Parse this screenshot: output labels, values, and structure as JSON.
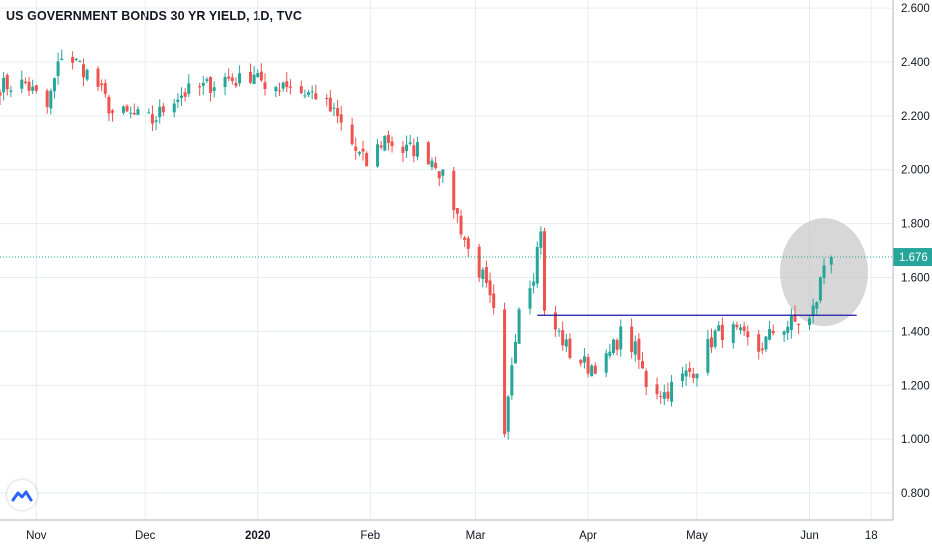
{
  "title": "US GOVERNMENT BONDS 30 YR YIELD, 1D, TVC",
  "colors": {
    "up": "#26a69a",
    "down": "#ef5350",
    "grid": "#e6ecf3",
    "axis": "#b2b5be",
    "last_price_bg": "#26a69a",
    "last_price_line": "#26a69a",
    "support_line": "#1a1aa8",
    "highlight_circle": "#c9c9c9"
  },
  "chart_data": {
    "type": "candlestick",
    "title": "US GOVERNMENT BONDS 30 YR YIELD, 1D, TVC",
    "y_axis": {
      "ticks": [
        "2.600",
        "2.400",
        "2.200",
        "2.000",
        "1.800",
        "1.600",
        "1.400",
        "1.200",
        "1.000",
        "0.800"
      ],
      "range": [
        0.7,
        2.63
      ]
    },
    "x_axis": {
      "ticks": [
        {
          "label": "Nov",
          "date": "2019-11-01",
          "bold": false
        },
        {
          "label": "Dec",
          "date": "2019-12-01",
          "bold": false
        },
        {
          "label": "2020",
          "date": "2020-01-01",
          "bold": true
        },
        {
          "label": "Feb",
          "date": "2020-02-01",
          "bold": false
        },
        {
          "label": "Mar",
          "date": "2020-03-01",
          "bold": false
        },
        {
          "label": "Apr",
          "date": "2020-04-01",
          "bold": false
        },
        {
          "label": "May",
          "date": "2020-05-01",
          "bold": false
        },
        {
          "label": "Jun",
          "date": "2020-06-01",
          "bold": false
        },
        {
          "label": "18",
          "date": "2020-06-18",
          "bold": false
        }
      ],
      "range": [
        "2019-10-22",
        "2020-06-24"
      ]
    },
    "last_price": "1.676",
    "support_level": 1.46,
    "support_line": {
      "from": "2020-03-18",
      "to": "2020-06-14"
    },
    "highlight": {
      "center_date": "2020-06-05",
      "center_value": 1.62
    },
    "keypoints": [
      [
        "2019-10-22",
        2.31
      ],
      [
        "2019-10-29",
        2.32
      ],
      [
        "2019-11-04",
        2.23
      ],
      [
        "2019-11-08",
        2.43
      ],
      [
        "2019-11-13",
        2.39
      ],
      [
        "2019-11-18",
        2.31
      ],
      [
        "2019-11-22",
        2.21
      ],
      [
        "2019-11-28",
        2.2
      ],
      [
        "2019-12-03",
        2.18
      ],
      [
        "2019-12-09",
        2.27
      ],
      [
        "2019-12-13",
        2.29
      ],
      [
        "2019-12-18",
        2.31
      ],
      [
        "2019-12-23",
        2.34
      ],
      [
        "2019-12-27",
        2.33
      ],
      [
        "2020-01-01",
        2.37
      ],
      [
        "2020-01-03",
        2.27
      ],
      [
        "2020-01-08",
        2.33
      ],
      [
        "2020-01-13",
        2.29
      ],
      [
        "2020-01-17",
        2.28
      ],
      [
        "2020-01-23",
        2.19
      ],
      [
        "2020-01-28",
        2.07
      ],
      [
        "2020-01-31",
        2.02
      ],
      [
        "2020-02-05",
        2.12
      ],
      [
        "2020-02-10",
        2.07
      ],
      [
        "2020-02-14",
        2.08
      ],
      [
        "2020-02-19",
        2.03
      ],
      [
        "2020-02-24",
        1.87
      ],
      [
        "2020-02-28",
        1.7
      ],
      [
        "2020-03-03",
        1.6
      ],
      [
        "2020-03-06",
        1.46
      ],
      [
        "2020-03-09",
        0.99
      ],
      [
        "2020-03-11",
        1.29
      ],
      [
        "2020-03-13",
        1.5
      ],
      [
        "2020-03-17",
        1.62
      ],
      [
        "2020-03-19",
        1.79
      ],
      [
        "2020-03-20",
        1.46
      ],
      [
        "2020-03-24",
        1.39
      ],
      [
        "2020-03-27",
        1.32
      ],
      [
        "2020-04-01",
        1.27
      ],
      [
        "2020-04-06",
        1.29
      ],
      [
        "2020-04-10",
        1.39
      ],
      [
        "2020-04-14",
        1.33
      ],
      [
        "2020-04-17",
        1.21
      ],
      [
        "2020-04-22",
        1.17
      ],
      [
        "2020-04-27",
        1.23
      ],
      [
        "2020-05-01",
        1.27
      ],
      [
        "2020-05-06",
        1.39
      ],
      [
        "2020-05-10",
        1.41
      ],
      [
        "2020-05-13",
        1.38
      ],
      [
        "2020-05-18",
        1.33
      ],
      [
        "2020-05-22",
        1.4
      ],
      [
        "2020-05-27",
        1.43
      ],
      [
        "2020-06-01",
        1.44
      ],
      [
        "2020-06-03",
        1.52
      ],
      [
        "2020-06-05",
        1.65
      ],
      [
        "2020-06-07",
        1.676
      ]
    ]
  }
}
